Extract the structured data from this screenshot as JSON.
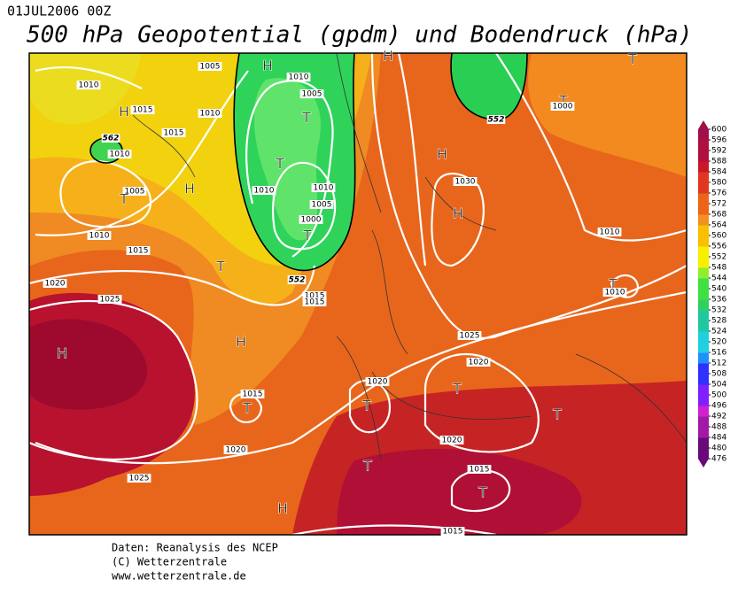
{
  "header": {
    "date": "01JUL2006 00Z",
    "title": "500 hPa Geopotential (gpdm) und Bodendruck (hPa)"
  },
  "map_labels": [
    "1005",
    "1010",
    "H",
    "1015",
    "1010",
    "1015",
    "562",
    "1010",
    "1005",
    "T",
    "H",
    "1010",
    "1015",
    "T",
    "1020",
    "1025",
    "H",
    "H",
    "1010",
    "1005",
    "T",
    "T",
    "1010",
    "1010",
    "1005",
    "1000",
    "T",
    "552",
    "1015",
    "1015",
    "H",
    "1015",
    "T",
    "1020",
    "1025",
    "H",
    "552",
    "T",
    "1000",
    "T",
    "H",
    "1030",
    "H",
    "1010",
    "T",
    "1010",
    "1025",
    "1020",
    "1020",
    "T",
    "T",
    "T",
    "1020",
    "T",
    "1015",
    "T",
    "H",
    "1015"
  ],
  "colorbar": {
    "ticks": [
      476,
      480,
      484,
      488,
      492,
      496,
      500,
      504,
      508,
      512,
      516,
      520,
      524,
      528,
      532,
      536,
      540,
      544,
      548,
      552,
      556,
      560,
      564,
      568,
      572,
      576,
      580,
      584,
      588,
      592,
      596,
      600
    ]
  },
  "footer": [
    "Daten: Reanalysis des NCEP",
    "(C) Wetterzentrale",
    "www.wetterzentrale.de"
  ]
}
